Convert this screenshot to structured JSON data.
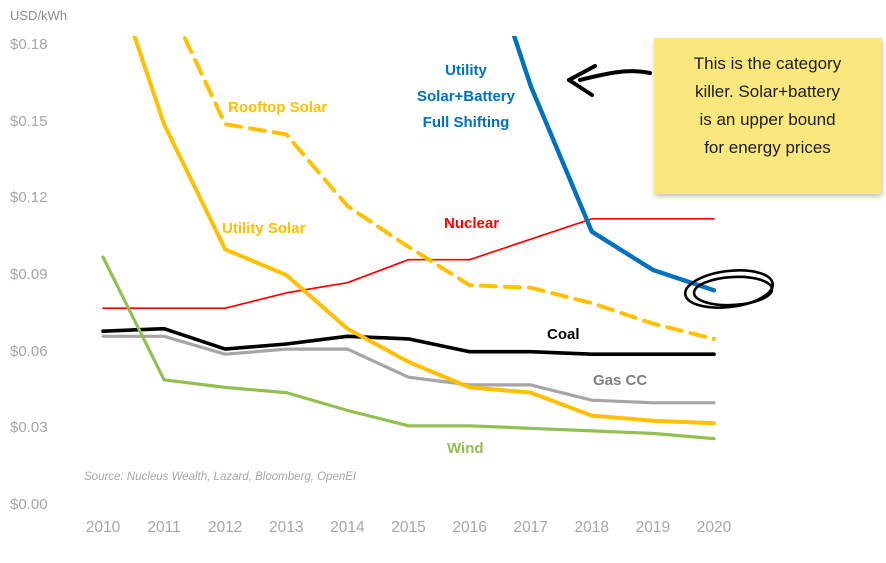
{
  "chart": {
    "unit_label": "USD/kWh",
    "source_note": "Source: Nucleus Wealth, Lazard, Bloomberg, OpenEI",
    "y_tick_labels": [
      "$0.18",
      "$0.15",
      "$0.12",
      "$0.09",
      "$0.06",
      "$0.03",
      "$0.00"
    ],
    "x_tick_labels": [
      "2010",
      "2011",
      "2012",
      "2013",
      "2014",
      "2015",
      "2016",
      "2017",
      "2018",
      "2019",
      "2020"
    ]
  },
  "series_labels": {
    "rooftop_solar": "Rooftop Solar",
    "utility_solar": "Utility Solar",
    "solar_battery": [
      "Utility",
      "Solar+Battery",
      "Full Shifting"
    ],
    "nuclear": "Nuclear",
    "coal": "Coal",
    "gas_cc": "Gas CC",
    "wind": "Wind"
  },
  "annotation": {
    "note_lines": [
      "This is the category",
      "killer. Solar+battery",
      "is an upper bound",
      "for energy prices"
    ],
    "note_color": "#FAE87E",
    "ink_color": "#000000"
  },
  "chart_data": {
    "type": "line",
    "title": "",
    "xlabel": "",
    "ylabel": "USD/kWh",
    "ylim": [
      0,
      0.18
    ],
    "xlim": [
      2010,
      2020
    ],
    "grid": false,
    "legend_position": "inline-labels",
    "x": [
      2010,
      2011,
      2012,
      2013,
      2014,
      2015,
      2016,
      2017,
      2018,
      2019,
      2020
    ],
    "series": [
      {
        "id": "nuclear",
        "name": "Nuclear",
        "color": "#FF0000",
        "width": 1.7,
        "values": [
          0.077,
          0.077,
          0.077,
          0.083,
          0.087,
          0.096,
          0.096,
          0.104,
          0.112,
          0.112,
          0.112
        ]
      },
      {
        "id": "gas-cc",
        "name": "Gas CC",
        "color": "#A6A6A6",
        "width": 3.2,
        "values": [
          0.066,
          0.066,
          0.059,
          0.061,
          0.061,
          0.05,
          0.047,
          0.047,
          0.041,
          0.04,
          0.04
        ]
      },
      {
        "id": "coal",
        "name": "Coal",
        "color": "#000000",
        "width": 3.6,
        "values": [
          0.068,
          0.069,
          0.061,
          0.063,
          0.066,
          0.065,
          0.06,
          0.06,
          0.059,
          0.059,
          0.059
        ]
      },
      {
        "id": "wind",
        "name": "Wind",
        "color": "#92C050",
        "width": 3.2,
        "values": [
          0.097,
          0.049,
          0.046,
          0.044,
          0.037,
          0.031,
          0.031,
          0.03,
          0.029,
          0.028,
          0.026
        ]
      },
      {
        "id": "rooftop-solar",
        "name": "Rooftop Solar",
        "color": "#FFC000",
        "width": 4,
        "dash": "15 9",
        "values": [
          0.24,
          0.2,
          0.149,
          0.145,
          0.117,
          0.101,
          0.086,
          0.085,
          0.079,
          0.071,
          0.065
        ]
      },
      {
        "id": "utility-solar",
        "name": "Utility Solar",
        "color": "#FFC000",
        "width": 4,
        "values": [
          0.22,
          0.149,
          0.1,
          0.09,
          0.069,
          0.056,
          0.046,
          0.044,
          0.035,
          0.033,
          0.032
        ]
      },
      {
        "id": "utility-solar-battery",
        "name": "Utility Solar+Battery Full Shifting",
        "color": "#0070C0",
        "width": 4.4,
        "x": [
          2016.5,
          2017,
          2018,
          2019,
          2020
        ],
        "values": [
          0.2,
          0.164,
          0.107,
          0.092,
          0.084
        ]
      }
    ]
  }
}
